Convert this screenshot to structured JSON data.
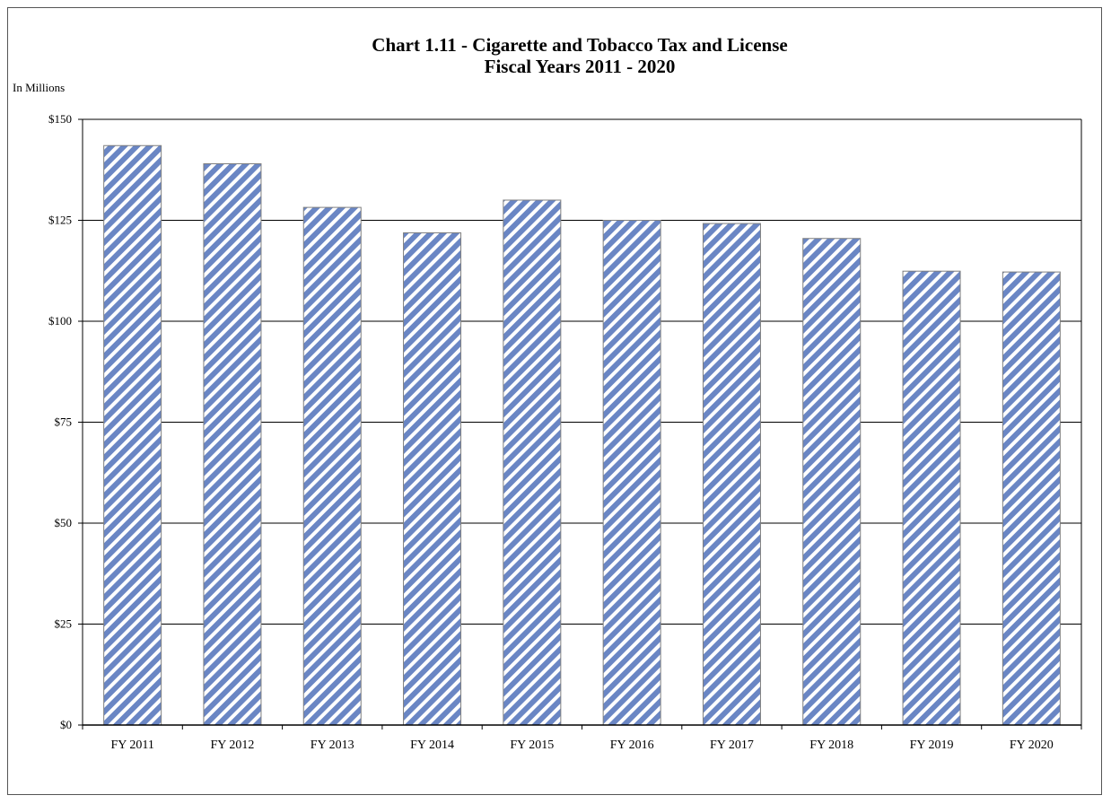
{
  "chart_data": {
    "type": "bar",
    "title": "Chart 1.11 - Cigarette and Tobacco Tax and License",
    "subtitle": "Fiscal Years 2011 - 2020",
    "unit_label": "In Millions",
    "categories": [
      "FY 2011",
      "FY 2012",
      "FY 2013",
      "FY 2014",
      "FY 2015",
      "FY 2016",
      "FY 2017",
      "FY 2018",
      "FY 2019",
      "FY 2020"
    ],
    "values": [
      143.5,
      139.0,
      128.2,
      121.9,
      130.0,
      125.0,
      124.2,
      120.5,
      112.4,
      112.2
    ],
    "ylim": [
      0,
      150
    ],
    "yticks": [
      0,
      25,
      50,
      75,
      100,
      125,
      150
    ],
    "ytick_labels": [
      "$0",
      "$25",
      "$50",
      "$75",
      "$100",
      "$125",
      "$150"
    ],
    "grid": true,
    "bar_fill": "diagonal-hatch",
    "colors": {
      "bar_stripe": "#6a86c4",
      "bar_background": "#ffffff",
      "grid": "#000000"
    }
  }
}
